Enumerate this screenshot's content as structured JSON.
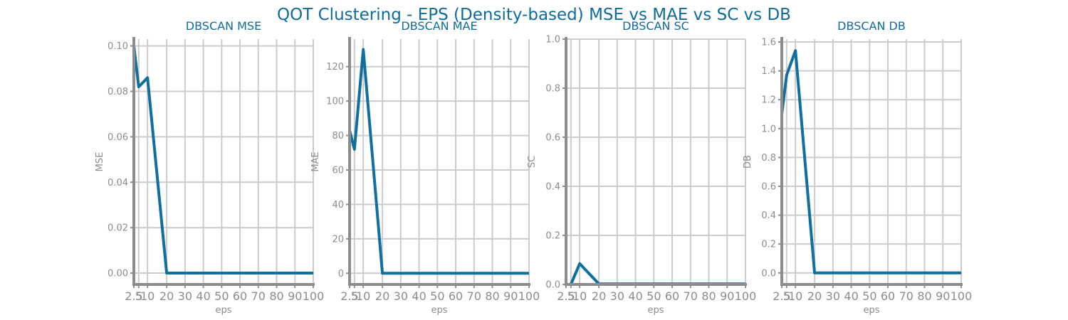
{
  "figure": {
    "title": "QOT Clustering - EPS (Density-based) MSE vs MAE vs SC vs DB",
    "title_color": "#0f6b9c",
    "line_color": "#0f6f9f",
    "axis_color": "#8c8c8c",
    "grid_color": "#cccccc"
  },
  "chart_data": [
    {
      "type": "line",
      "title": "DBSCAN MSE",
      "xlabel": "eps",
      "ylabel": "MSE",
      "x_ticks": [
        "2.5",
        "5",
        "10",
        "20",
        "30",
        "40",
        "50",
        "60",
        "70",
        "80",
        "90",
        "100"
      ],
      "y_ticks": [
        "0.00",
        "0.02",
        "0.04",
        "0.06",
        "0.08",
        "0.10"
      ],
      "xlim": [
        2.5,
        100
      ],
      "ylim": [
        -0.005,
        0.103
      ],
      "grid": true,
      "x": [
        2.5,
        5,
        10,
        20,
        30,
        40,
        50,
        60,
        70,
        80,
        90,
        100
      ],
      "values": [
        0.1,
        0.082,
        0.086,
        0.0,
        0.0,
        0.0,
        0.0,
        0.0,
        0.0,
        0.0,
        0.0,
        0.0
      ]
    },
    {
      "type": "line",
      "title": "DBSCAN MAE",
      "xlabel": "eps",
      "ylabel": "MAE",
      "x_ticks": [
        "2.5",
        "5",
        "10",
        "20",
        "30",
        "40",
        "50",
        "60",
        "70",
        "80",
        "90",
        "100"
      ],
      "y_ticks": [
        "0",
        "20",
        "40",
        "60",
        "80",
        "100",
        "120"
      ],
      "xlim": [
        2.5,
        100
      ],
      "ylim": [
        -6.5,
        136
      ],
      "grid": true,
      "x": [
        2.5,
        5,
        10,
        20,
        30,
        40,
        50,
        60,
        70,
        80,
        90,
        100
      ],
      "values": [
        83,
        72,
        130,
        0,
        0,
        0,
        0,
        0,
        0,
        0,
        0,
        0
      ]
    },
    {
      "type": "line",
      "title": "DBSCAN SC",
      "xlabel": "eps",
      "ylabel": "SC",
      "x_ticks": [
        "2.5",
        "5",
        "10",
        "20",
        "30",
        "40",
        "50",
        "60",
        "70",
        "80",
        "90",
        "100"
      ],
      "y_ticks": [
        "0.0",
        "0.2",
        "0.4",
        "0.6",
        "0.8",
        "1.0"
      ],
      "xlim": [
        2.5,
        100
      ],
      "ylim": [
        0,
        1.0
      ],
      "grid": true,
      "x": [
        2.5,
        5,
        10,
        20,
        30,
        40,
        50,
        60,
        70,
        80,
        90,
        100
      ],
      "values": [
        -0.05,
        0.0,
        0.085,
        0.002,
        0.002,
        0.002,
        0.002,
        0.002,
        0.002,
        0.002,
        0.002,
        0.002
      ]
    },
    {
      "type": "line",
      "title": "DBSCAN DB",
      "xlabel": "eps",
      "ylabel": "DB",
      "x_ticks": [
        "2.5",
        "5",
        "10",
        "20",
        "30",
        "40",
        "50",
        "60",
        "70",
        "80",
        "90",
        "100"
      ],
      "y_ticks": [
        "0.0",
        "0.2",
        "0.4",
        "0.6",
        "0.8",
        "1.0",
        "1.2",
        "1.4",
        "1.6"
      ],
      "xlim": [
        2.5,
        100
      ],
      "ylim": [
        -0.08,
        1.62
      ],
      "grid": true,
      "x": [
        2.5,
        5,
        10,
        20,
        30,
        40,
        50,
        60,
        70,
        80,
        90,
        100
      ],
      "values": [
        1.1,
        1.37,
        1.54,
        0.0,
        0.0,
        0.0,
        0.0,
        0.0,
        0.0,
        0.0,
        0.0,
        0.0
      ]
    }
  ]
}
